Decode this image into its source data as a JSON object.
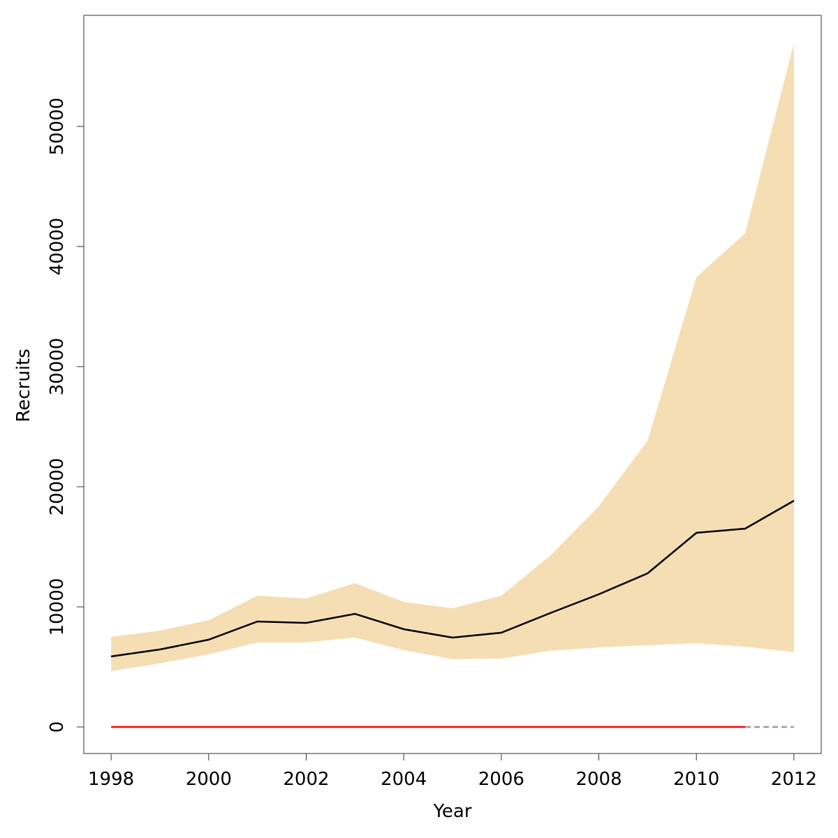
{
  "chart_data": {
    "type": "line",
    "xlabel": "Year",
    "ylabel": "Recruits",
    "x": [
      1998,
      1999,
      2000,
      2001,
      2002,
      2003,
      2004,
      2005,
      2006,
      2007,
      2008,
      2009,
      2010,
      2011,
      2012
    ],
    "band": {
      "color": "#f5deb3",
      "lower": [
        4651,
        5291,
        6047,
        7035,
        7035,
        7442,
        6395,
        5640,
        5698,
        6337,
        6628,
        6802,
        6977,
        6686,
        6221
      ],
      "upper": [
        7500,
        8023,
        8895,
        10930,
        10698,
        11977,
        10407,
        9884,
        10930,
        14244,
        18372,
        23837,
        37442,
        41105,
        56919
      ]
    },
    "series": [
      {
        "color": "#000000",
        "values": [
          5872,
          6453,
          7267,
          8779,
          8663,
          9419,
          8140,
          7442,
          7849,
          9477,
          11047,
          12791,
          16163,
          16512,
          18837
        ]
      },
      {
        "color": "#ff0000",
        "values": [
          0,
          0,
          0,
          0,
          0,
          0,
          0,
          0,
          0,
          0,
          0,
          0,
          0,
          0,
          null
        ]
      },
      {
        "color": "#999999",
        "dashed": true,
        "values": [
          null,
          null,
          null,
          null,
          null,
          null,
          null,
          null,
          null,
          null,
          null,
          null,
          null,
          0,
          0
        ]
      }
    ],
    "xlim": [
      1997.44,
      2012.56
    ],
    "ylim": [
      -2209,
      59244
    ],
    "xticks": [
      1998,
      2000,
      2002,
      2004,
      2006,
      2008,
      2010,
      2012
    ],
    "yticks": [
      0,
      10000,
      20000,
      30000,
      40000,
      50000
    ]
  }
}
